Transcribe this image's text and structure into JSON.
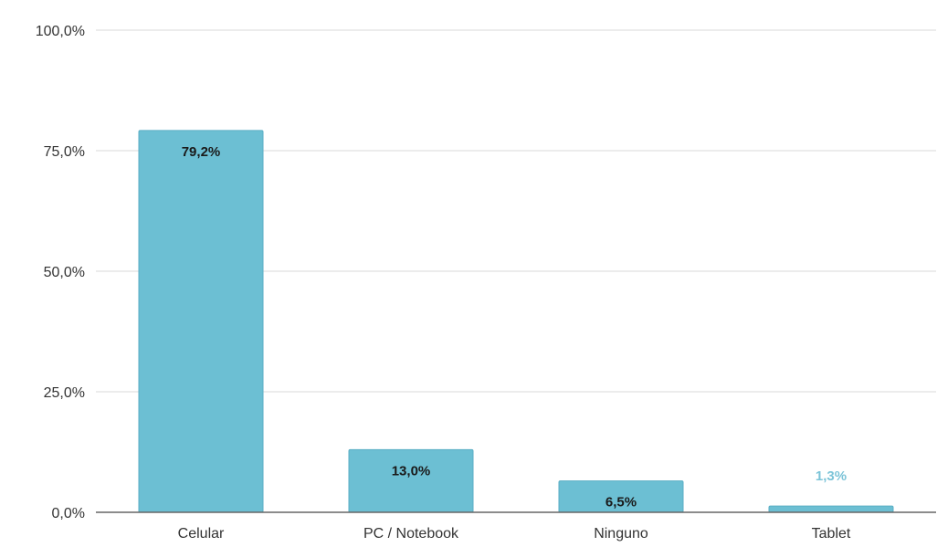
{
  "chart_data": {
    "type": "bar",
    "title": "",
    "xlabel": "",
    "ylabel": "",
    "categories": [
      "Celular",
      "PC / Notebook",
      "Ninguno",
      "Tablet"
    ],
    "values": [
      79.2,
      13.0,
      6.5,
      1.3
    ],
    "data_labels": [
      "79,2%",
      "13,0%",
      "6,5%",
      "1,3%"
    ],
    "ylim": [
      0,
      100
    ],
    "yticks": [
      0,
      25,
      50,
      75,
      100
    ],
    "ytick_labels": [
      "0,0%",
      "25,0%",
      "50,0%",
      "75,0%",
      "100,0%"
    ],
    "grid": true,
    "legend": "none",
    "colors": {
      "bar": "#6cbfd3",
      "bar_edge": "#5aaec4",
      "grid": "#d9d9d9",
      "axis": "#666666",
      "label_inside": "#1a1a1a",
      "label_outside": "#7cc4d8"
    }
  }
}
